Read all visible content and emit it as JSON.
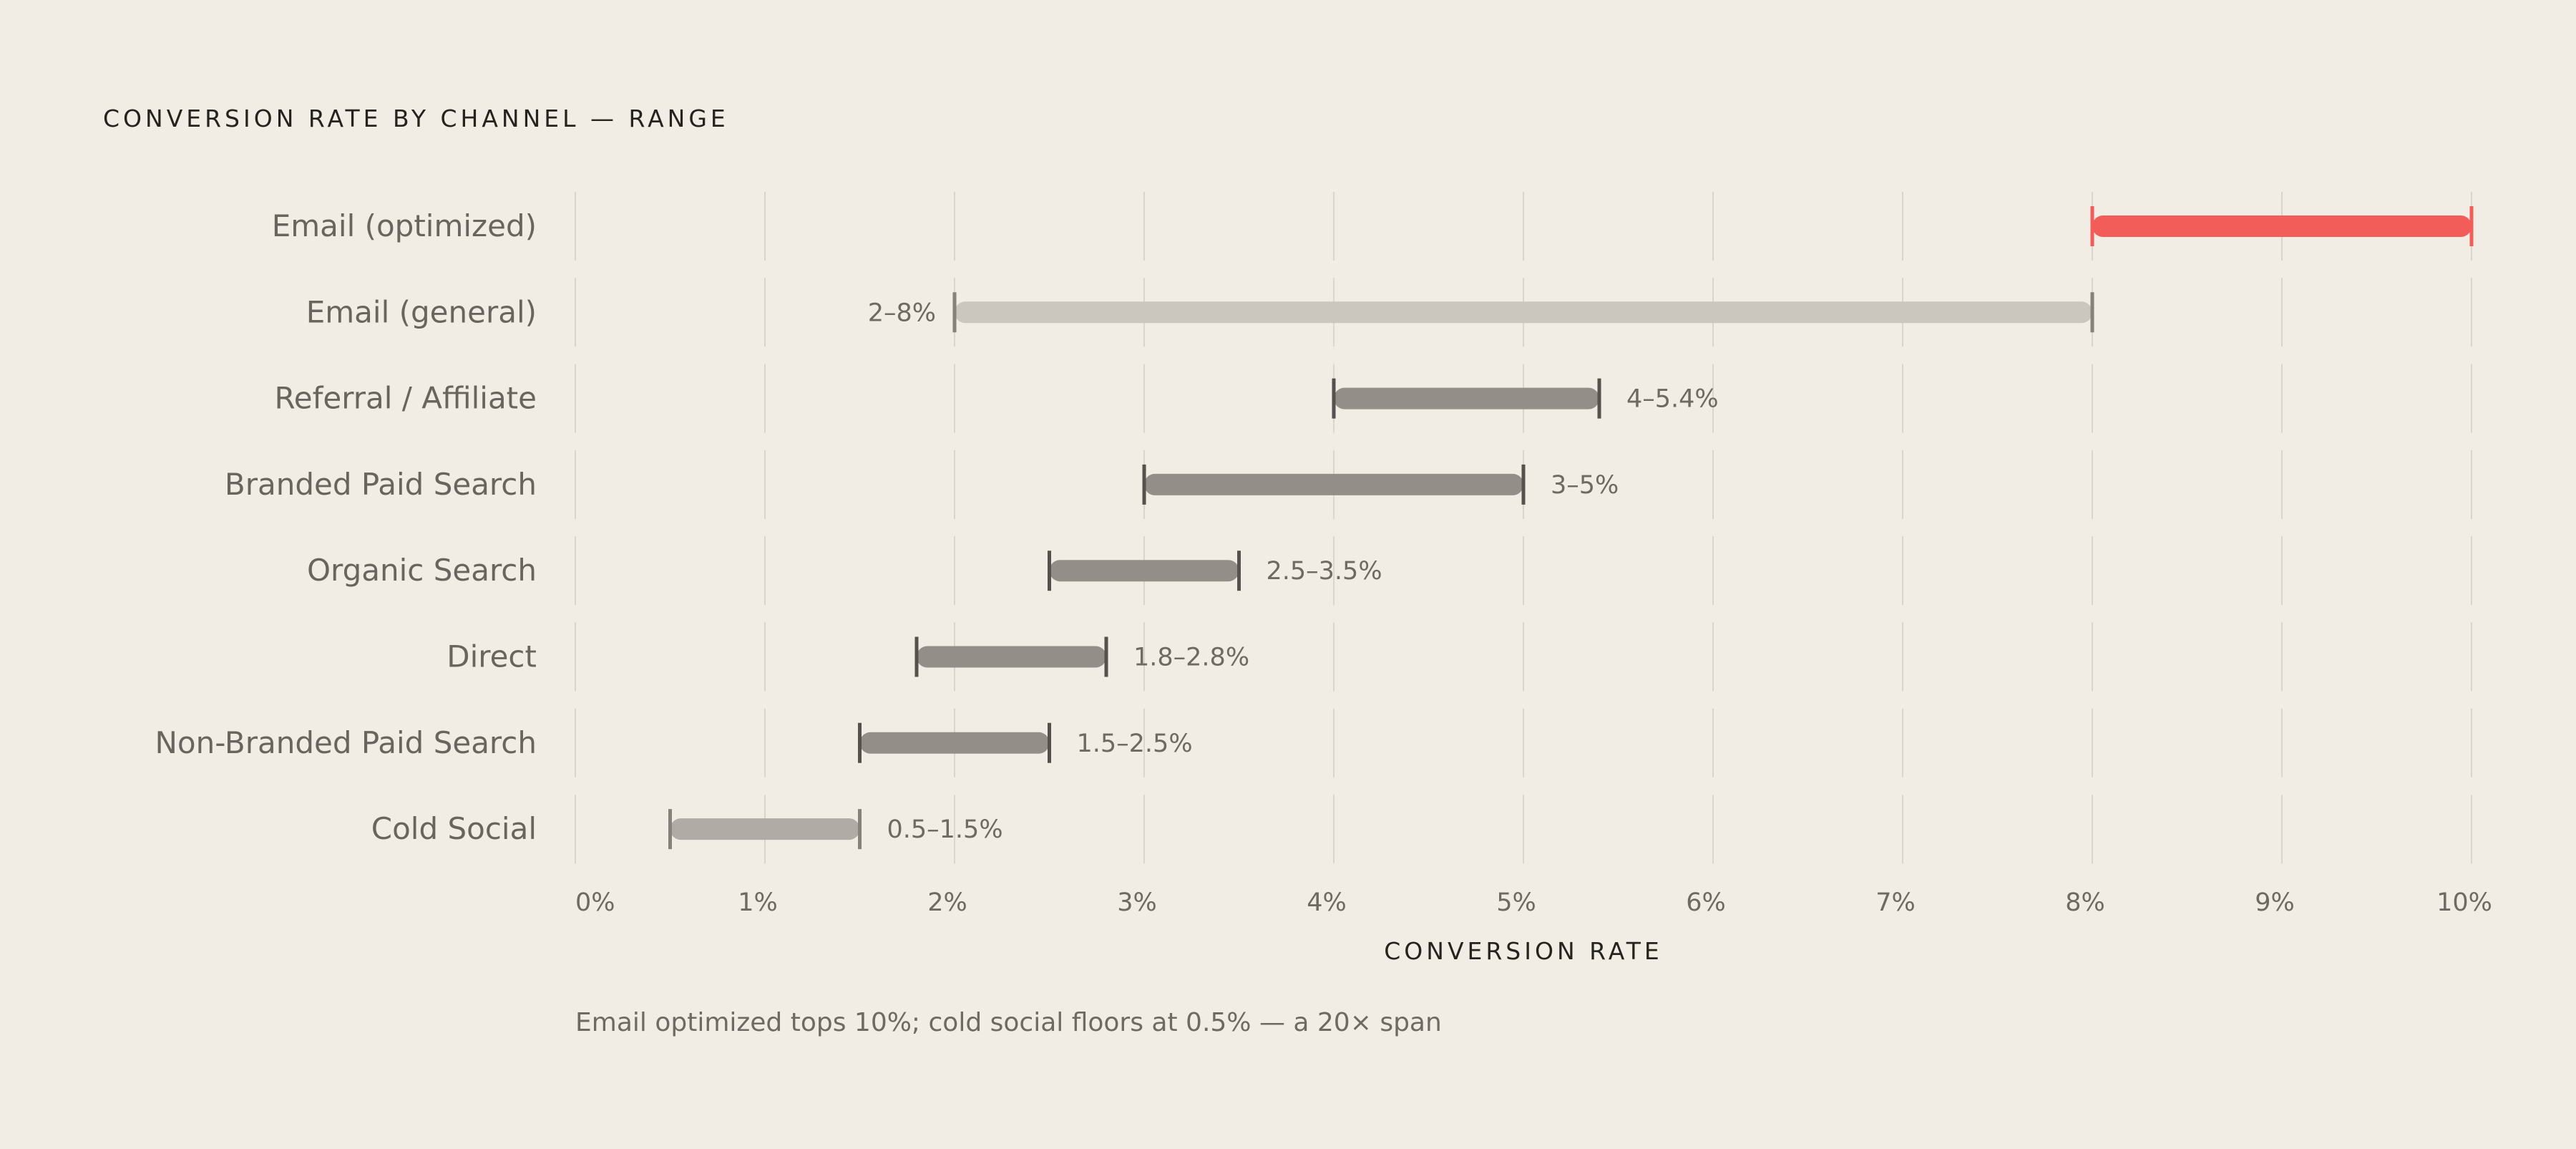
{
  "title": "CONVERSION RATE BY CHANNEL — RANGE",
  "footnote": "Email optimized tops 10%; cold social floors at 0.5% — a 20× span",
  "chart_data": {
    "type": "range-bar",
    "title": "CONVERSION RATE BY CHANNEL — RANGE",
    "xlabel": "CONVERSION RATE",
    "xlim": [
      0,
      10
    ],
    "xticks": [
      {
        "value": 0,
        "label": "0%"
      },
      {
        "value": 1,
        "label": "1%"
      },
      {
        "value": 2,
        "label": "2%"
      },
      {
        "value": 3,
        "label": "3%"
      },
      {
        "value": 4,
        "label": "4%"
      },
      {
        "value": 5,
        "label": "5%"
      },
      {
        "value": 6,
        "label": "6%"
      },
      {
        "value": 7,
        "label": "7%"
      },
      {
        "value": 8,
        "label": "8%"
      },
      {
        "value": 9,
        "label": "9%"
      },
      {
        "value": 10,
        "label": "10%"
      }
    ],
    "grid": true,
    "categories": [
      {
        "name": "Email (optimized)",
        "low": 8,
        "high": 10,
        "label": "",
        "color": "#f25d59"
      },
      {
        "name": "Email (general)",
        "low": 2,
        "high": 8,
        "label": "2–8%",
        "color": "#cbc6be",
        "label_side": "left"
      },
      {
        "name": "Referral / Affiliate",
        "low": 4,
        "high": 5.4,
        "label": "4–5.4%",
        "color": "#938e88"
      },
      {
        "name": "Branded Paid Search",
        "low": 3,
        "high": 5,
        "label": "3–5%",
        "color": "#938e88"
      },
      {
        "name": "Organic Search",
        "low": 2.5,
        "high": 3.5,
        "label": "2.5–3.5%",
        "color": "#938e88"
      },
      {
        "name": "Direct",
        "low": 1.8,
        "high": 2.8,
        "label": "1.8–2.8%",
        "color": "#938e88"
      },
      {
        "name": "Non-Branded Paid Search",
        "low": 1.5,
        "high": 2.5,
        "label": "1.5–2.5%",
        "color": "#938e88"
      },
      {
        "name": "Cold Social",
        "low": 0.5,
        "high": 1.5,
        "label": "0.5–1.5%",
        "color": "#b0aca5"
      }
    ],
    "colors": {
      "gridline": "#d9d4cc",
      "cap_dark": "#55514c",
      "cap_light": "#85817b",
      "cap_highlight": "#f25d59"
    }
  }
}
